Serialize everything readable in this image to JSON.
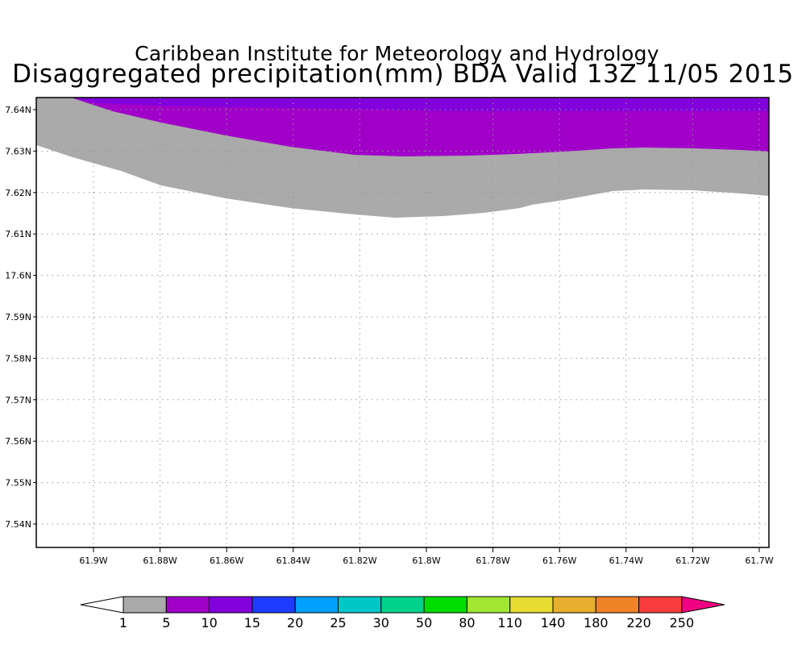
{
  "title": {
    "line1": "Caribbean Institute for Meteorology and Hydrology",
    "line2": "Disaggregated precipitation(mm) BDA Valid 13Z 11/05 2015"
  },
  "map": {
    "lon_ticks": [
      "61.9W",
      "61.88W",
      "61.86W",
      "61.84W",
      "61.82W",
      "61.8W",
      "61.78W",
      "61.76W",
      "61.74W",
      "61.72W",
      "61.7W"
    ],
    "lat_ticks": [
      "7.64N",
      "7.63N",
      "7.62N",
      "7.61N",
      "17.6N",
      "7.59N",
      "7.58N",
      "7.57N",
      "7.56N",
      "7.55N",
      "7.54N"
    ],
    "fill_colors": {
      "band_1_5": "#aaaaaa",
      "band_5_10": "#a000c8",
      "band_10_15": "#8200dc"
    }
  },
  "colorbar": {
    "labels": [
      "1",
      "5",
      "10",
      "15",
      "20",
      "25",
      "30",
      "50",
      "80",
      "110",
      "140",
      "180",
      "220",
      "250"
    ],
    "colors": [
      "#aaaaaa",
      "#a000c8",
      "#8200dc",
      "#1e3cff",
      "#00a0ff",
      "#00c8c8",
      "#00d28c",
      "#00dc00",
      "#a0e632",
      "#e6dc32",
      "#e6af2d",
      "#f08228",
      "#fa3c3c"
    ],
    "below_color": "#ffffff",
    "above_color": "#f00082"
  }
}
